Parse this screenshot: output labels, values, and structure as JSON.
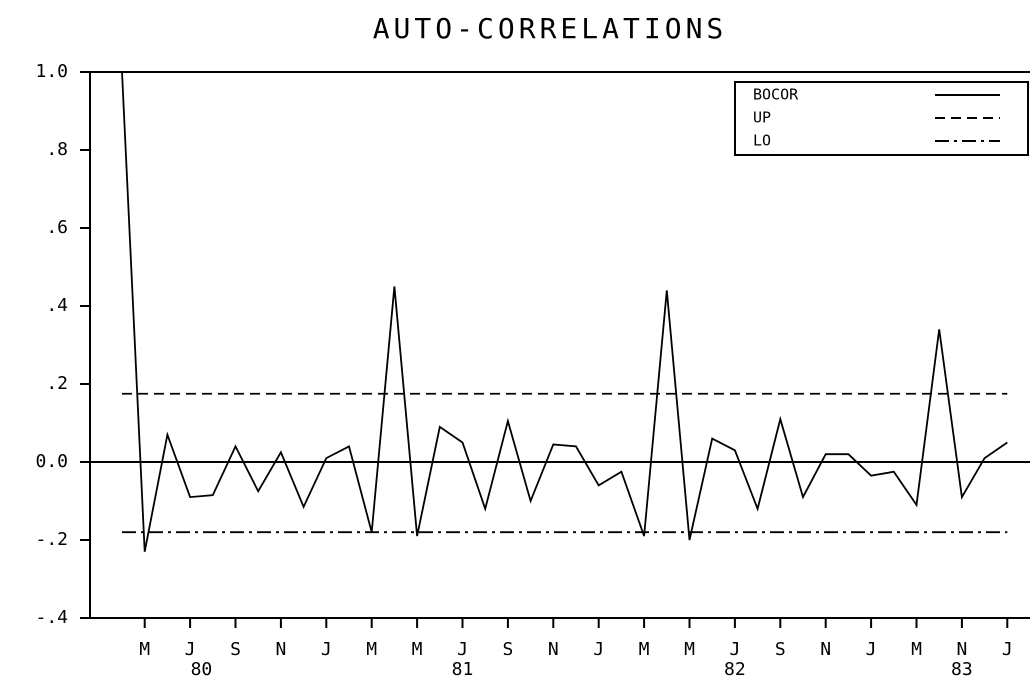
{
  "chart_data": {
    "type": "line",
    "title": "AUTO-CORRELATIONS",
    "categories": [
      null,
      "M",
      null,
      "J",
      null,
      "S",
      null,
      "N",
      null,
      "J",
      null,
      "M",
      null,
      "M",
      null,
      "J",
      null,
      "S",
      null,
      "N",
      null,
      "J",
      null,
      "M",
      null,
      "M",
      null,
      "J",
      null,
      "S",
      null,
      "N",
      null,
      "J",
      null,
      "M",
      null,
      "N",
      null,
      "J"
    ],
    "years": [
      "80",
      "81",
      "82",
      "83"
    ],
    "series": [
      {
        "name": "BOCOR",
        "color": "#000000",
        "style": "solid",
        "values": [
          1.0,
          -0.23,
          0.07,
          -0.09,
          -0.085,
          0.04,
          -0.075,
          0.025,
          -0.115,
          0.01,
          0.04,
          -0.18,
          0.45,
          -0.19,
          0.09,
          0.05,
          -0.12,
          0.105,
          -0.1,
          0.045,
          0.04,
          -0.06,
          -0.025,
          -0.19,
          0.44,
          -0.2,
          0.06,
          0.03,
          -0.12,
          0.11,
          -0.09,
          0.02,
          0.02,
          -0.035,
          -0.025,
          -0.11,
          0.34,
          -0.09,
          0.01,
          0.05
        ]
      },
      {
        "name": "UP",
        "color": "#000000",
        "style": "dashed",
        "values": [
          0.175,
          0.175,
          0.175,
          0.175,
          0.175,
          0.175,
          0.175,
          0.175,
          0.175,
          0.175,
          0.175,
          0.175,
          0.175,
          0.175,
          0.175,
          0.175,
          0.175,
          0.175,
          0.175,
          0.175,
          0.175,
          0.175,
          0.175,
          0.175,
          0.175,
          0.175,
          0.175,
          0.175,
          0.175,
          0.175,
          0.175,
          0.175,
          0.175,
          0.175,
          0.175,
          0.175,
          0.175,
          0.175,
          0.175,
          0.175
        ]
      },
      {
        "name": "LO",
        "color": "#000000",
        "style": "dashdot",
        "values": [
          -0.18,
          -0.18,
          -0.18,
          -0.18,
          -0.18,
          -0.18,
          -0.18,
          -0.18,
          -0.18,
          -0.18,
          -0.18,
          -0.18,
          -0.18,
          -0.18,
          -0.18,
          -0.18,
          -0.18,
          -0.18,
          -0.18,
          -0.18,
          -0.18,
          -0.18,
          -0.18,
          -0.18,
          -0.18,
          -0.18,
          -0.18,
          -0.18,
          -0.18,
          -0.18,
          -0.18,
          -0.18,
          -0.18,
          -0.18,
          -0.18,
          -0.18,
          -0.18,
          -0.18,
          -0.18,
          -0.18
        ]
      }
    ],
    "ylim": [
      -0.4,
      1.0
    ],
    "yticks": [
      {
        "value": -0.4,
        "label": "-.4"
      },
      {
        "value": -0.2,
        "label": "-.2"
      },
      {
        "value": 0,
        "label": "0.0"
      },
      {
        "value": 0.2,
        "label": ".2"
      },
      {
        "value": 0.4,
        "label": ".4"
      },
      {
        "value": 0.6,
        "label": ".6"
      },
      {
        "value": 0.8,
        "label": ".8"
      },
      {
        "value": 1.0,
        "label": "1.0"
      }
    ],
    "legend": "upper right"
  }
}
